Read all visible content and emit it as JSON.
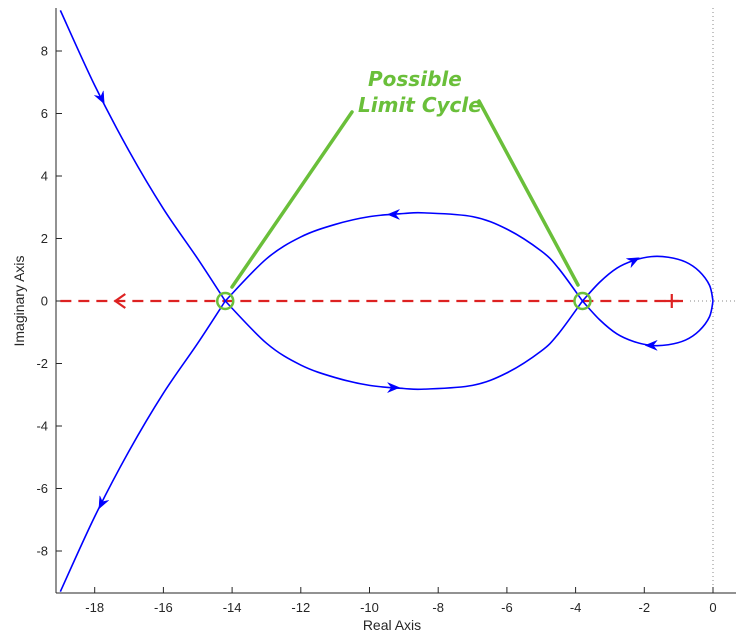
{
  "chart_data": {
    "type": "line",
    "title": "",
    "xlabel": "Real Axis",
    "ylabel": "Imaginary Axis",
    "xlim": [
      -19,
      0.6
    ],
    "ylim": [
      -9.3,
      9.3
    ],
    "xticks": [
      -18,
      -16,
      -14,
      -12,
      -10,
      -8,
      -6,
      -4,
      -2,
      0
    ],
    "xtick_labels": [
      "-18",
      "-16",
      "-14",
      "-12",
      "-10",
      "-8",
      "-6",
      "-4",
      "-2",
      "0"
    ],
    "yticks": [
      -8,
      -6,
      -4,
      -2,
      0,
      2,
      4,
      6,
      8
    ],
    "ytick_labels": [
      "-8",
      "-6",
      "-4",
      "-2",
      "0",
      "2",
      "4",
      "6",
      "8"
    ],
    "grid": false,
    "colors": {
      "locus": "#0000ff",
      "negative_axis": "#dd2222",
      "annotation": "#6abf3a",
      "axis": "#262626"
    },
    "series": [
      {
        "x": [
          -19,
          -18,
          -17,
          -16,
          -15,
          -14.2
        ],
        "y": [
          9.3,
          6.9,
          4.8,
          2.95,
          1.35,
          0
        ]
      },
      {
        "x": [
          -19,
          -18,
          -17,
          -16,
          -15,
          -14.2
        ],
        "y": [
          -9.3,
          -6.9,
          -4.8,
          -2.95,
          -1.35,
          0
        ]
      },
      {
        "x": [
          -14.2,
          -13,
          -12,
          -11,
          -10,
          -9,
          -8.4,
          -7,
          -6,
          -5,
          -4.5,
          -3.8
        ],
        "y": [
          0,
          1.35,
          2.05,
          2.45,
          2.7,
          2.8,
          2.82,
          2.7,
          2.3,
          1.6,
          1.05,
          0
        ]
      },
      {
        "x": [
          -14.2,
          -13,
          -12,
          -11,
          -10,
          -9,
          -8.4,
          -7,
          -6,
          -5,
          -4.5,
          -3.8
        ],
        "y": [
          0,
          -1.35,
          -2.05,
          -2.45,
          -2.7,
          -2.8,
          -2.82,
          -2.7,
          -2.3,
          -1.6,
          -1.05,
          0
        ]
      },
      {
        "x": [
          -3.8,
          -3.3,
          -2.8,
          -2.3,
          -1.8,
          -1.3,
          -0.8,
          -0.4,
          -0.1,
          0
        ],
        "y": [
          0,
          0.6,
          1.05,
          1.3,
          1.42,
          1.4,
          1.25,
          0.95,
          0.5,
          0
        ]
      },
      {
        "x": [
          -3.8,
          -3.3,
          -2.8,
          -2.3,
          -1.8,
          -1.3,
          -0.8,
          -0.4,
          -0.1,
          0
        ],
        "y": [
          0,
          -0.6,
          -1.05,
          -1.3,
          -1.42,
          -1.4,
          -1.25,
          -0.95,
          -0.5,
          0
        ]
      }
    ],
    "arrows": [
      {
        "series": 0,
        "at": -17.8,
        "toward": "down-right"
      },
      {
        "series": 1,
        "at": -17.8,
        "toward": "down-left"
      },
      {
        "series": 2,
        "at": -9.3,
        "toward": "left"
      },
      {
        "series": 3,
        "at": -9.3,
        "toward": "right"
      },
      {
        "series": 4,
        "at": -2.3,
        "toward": "up-right"
      },
      {
        "series": 5,
        "at": -1.8,
        "toward": "left"
      }
    ],
    "negative_gain_axis": {
      "x_from": -19,
      "x_to": 0,
      "y": 0,
      "marker_plus_x": -1.2,
      "arrow_at_x": -17.4
    },
    "highlight_circles": [
      {
        "x": -14.2,
        "y": 0
      },
      {
        "x": -3.8,
        "y": 0
      }
    ],
    "annotation": {
      "lines": [
        "Possible",
        "Limit Cycle"
      ]
    }
  }
}
